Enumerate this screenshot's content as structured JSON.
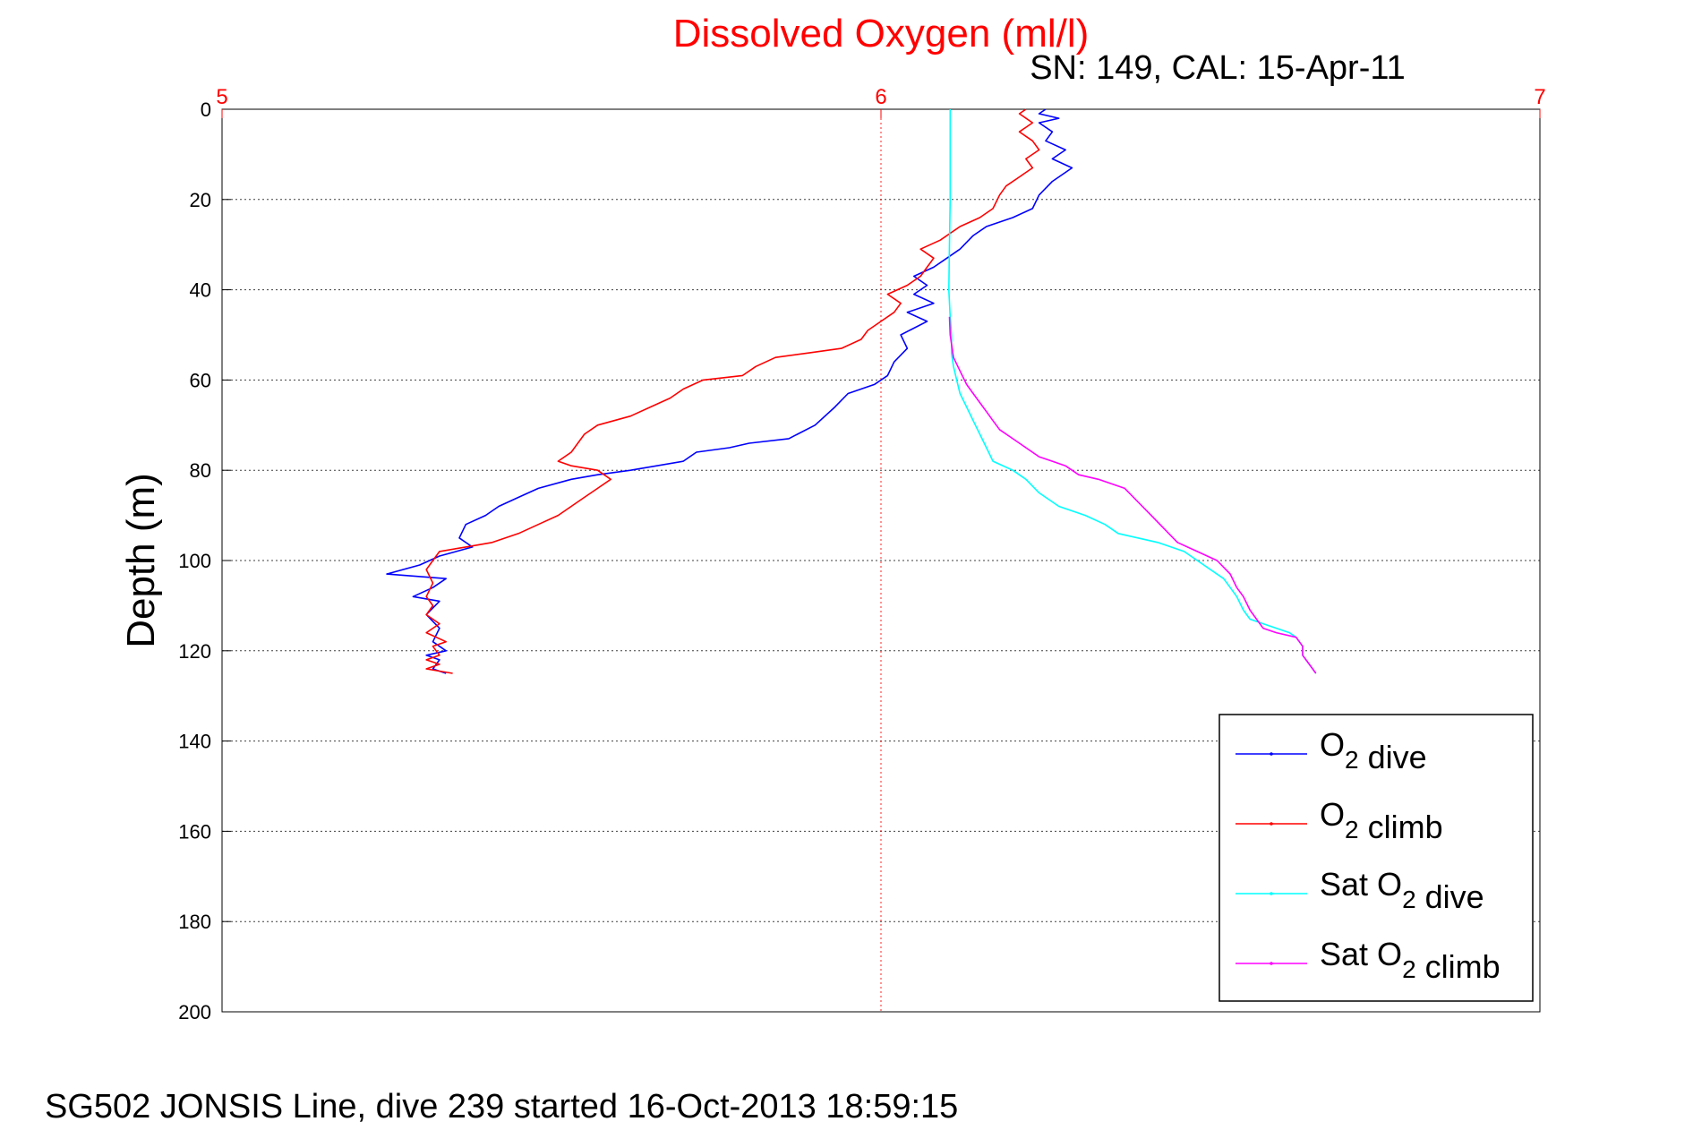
{
  "colors": {
    "title": "#ff0000",
    "top_axis": "#ff0000",
    "dive": "#0000ff",
    "climb": "#ff0000",
    "sat_dive": "#00ffff",
    "sat_climb": "#ff00ff",
    "text": "#000000",
    "grid_y": "#000000",
    "grid_x": "#ff0000"
  },
  "chart_data": {
    "type": "line",
    "title": "Dissolved Oxygen (ml/l)",
    "subtitle": "SN: 149, CAL: 15-Apr-11",
    "xlabel": "",
    "ylabel": "Depth (m)",
    "footer": "SG502 JONSIS Line, dive 239 started 16-Oct-2013 18:59:15",
    "xlim": [
      5,
      7
    ],
    "ylim": [
      0,
      200
    ],
    "y_reversed": true,
    "x_axis_position": "top",
    "grid": true,
    "legend_position": "bottom-right",
    "x_ticks": [
      "5",
      "6",
      "7"
    ],
    "y_ticks": [
      "0",
      "20",
      "40",
      "60",
      "80",
      "100",
      "120",
      "140",
      "160",
      "180",
      "200"
    ],
    "series": [
      {
        "name": "O2 dive",
        "color_key": "dive",
        "points": [
          [
            6.25,
            0
          ],
          [
            6.24,
            1
          ],
          [
            6.27,
            2
          ],
          [
            6.24,
            3
          ],
          [
            6.26,
            5
          ],
          [
            6.25,
            7
          ],
          [
            6.28,
            9
          ],
          [
            6.26,
            11
          ],
          [
            6.29,
            13
          ],
          [
            6.26,
            16
          ],
          [
            6.24,
            19
          ],
          [
            6.23,
            22
          ],
          [
            6.2,
            24
          ],
          [
            6.16,
            26
          ],
          [
            6.14,
            28
          ],
          [
            6.12,
            31
          ],
          [
            6.1,
            33
          ],
          [
            6.08,
            35
          ],
          [
            6.05,
            37
          ],
          [
            6.07,
            39
          ],
          [
            6.05,
            41
          ],
          [
            6.08,
            43
          ],
          [
            6.04,
            45
          ],
          [
            6.07,
            47
          ],
          [
            6.03,
            50
          ],
          [
            6.04,
            53
          ],
          [
            6.02,
            56
          ],
          [
            6.01,
            59
          ],
          [
            5.99,
            61
          ],
          [
            5.95,
            63
          ],
          [
            5.93,
            66
          ],
          [
            5.9,
            70
          ],
          [
            5.86,
            73
          ],
          [
            5.8,
            74
          ],
          [
            5.77,
            75
          ],
          [
            5.72,
            76
          ],
          [
            5.7,
            78
          ],
          [
            5.62,
            80
          ],
          [
            5.57,
            81
          ],
          [
            5.53,
            82
          ],
          [
            5.48,
            84
          ],
          [
            5.45,
            86
          ],
          [
            5.42,
            88
          ],
          [
            5.4,
            90
          ],
          [
            5.37,
            92
          ],
          [
            5.36,
            95
          ],
          [
            5.38,
            97
          ],
          [
            5.33,
            99
          ],
          [
            5.3,
            101
          ],
          [
            5.25,
            103
          ],
          [
            5.34,
            104
          ],
          [
            5.32,
            106
          ],
          [
            5.29,
            108
          ],
          [
            5.33,
            109
          ],
          [
            5.31,
            112
          ],
          [
            5.33,
            115
          ],
          [
            5.32,
            118
          ],
          [
            5.34,
            120
          ],
          [
            5.31,
            121
          ],
          [
            5.33,
            122
          ],
          [
            5.32,
            124
          ],
          [
            5.34,
            125
          ]
        ]
      },
      {
        "name": "O2 climb",
        "color_key": "climb",
        "points": [
          [
            5.35,
            125
          ],
          [
            5.31,
            124
          ],
          [
            5.33,
            123
          ],
          [
            5.31,
            122
          ],
          [
            5.33,
            121
          ],
          [
            5.32,
            119
          ],
          [
            5.34,
            118
          ],
          [
            5.31,
            116
          ],
          [
            5.33,
            114
          ],
          [
            5.31,
            112
          ],
          [
            5.32,
            110
          ],
          [
            5.31,
            108
          ],
          [
            5.32,
            105
          ],
          [
            5.31,
            102
          ],
          [
            5.32,
            100
          ],
          [
            5.33,
            98
          ],
          [
            5.37,
            97
          ],
          [
            5.41,
            96
          ],
          [
            5.45,
            94
          ],
          [
            5.48,
            92
          ],
          [
            5.51,
            90
          ],
          [
            5.53,
            88
          ],
          [
            5.55,
            86
          ],
          [
            5.57,
            84
          ],
          [
            5.59,
            82
          ],
          [
            5.57,
            80
          ],
          [
            5.53,
            79
          ],
          [
            5.51,
            78
          ],
          [
            5.53,
            76
          ],
          [
            5.54,
            74
          ],
          [
            5.55,
            72
          ],
          [
            5.57,
            70
          ],
          [
            5.62,
            68
          ],
          [
            5.65,
            66
          ],
          [
            5.68,
            64
          ],
          [
            5.7,
            62
          ],
          [
            5.73,
            60
          ],
          [
            5.79,
            59
          ],
          [
            5.81,
            57
          ],
          [
            5.84,
            55
          ],
          [
            5.89,
            54
          ],
          [
            5.94,
            53
          ],
          [
            5.97,
            51
          ],
          [
            5.98,
            49
          ],
          [
            6.0,
            47
          ],
          [
            6.02,
            45
          ],
          [
            6.03,
            43
          ],
          [
            6.01,
            41
          ],
          [
            6.04,
            39
          ],
          [
            6.06,
            37
          ],
          [
            6.07,
            35
          ],
          [
            6.08,
            33
          ],
          [
            6.06,
            31
          ],
          [
            6.09,
            29
          ],
          [
            6.12,
            26
          ],
          [
            6.15,
            24
          ],
          [
            6.17,
            22
          ],
          [
            6.18,
            19
          ],
          [
            6.19,
            17
          ],
          [
            6.21,
            15
          ],
          [
            6.23,
            13
          ],
          [
            6.22,
            11
          ],
          [
            6.24,
            9
          ],
          [
            6.23,
            7
          ],
          [
            6.21,
            5
          ],
          [
            6.23,
            3
          ],
          [
            6.21,
            1
          ],
          [
            6.22,
            0
          ]
        ]
      },
      {
        "name": "Sat O2 dive",
        "color_key": "sat_dive",
        "points": [
          [
            6.105,
            0
          ],
          [
            6.105,
            10
          ],
          [
            6.105,
            20
          ],
          [
            6.104,
            30
          ],
          [
            6.103,
            40
          ],
          [
            6.105,
            46
          ],
          [
            6.107,
            50
          ],
          [
            6.107,
            54
          ],
          [
            6.11,
            57
          ],
          [
            6.115,
            60
          ],
          [
            6.12,
            63
          ],
          [
            6.13,
            66
          ],
          [
            6.14,
            69
          ],
          [
            6.15,
            72
          ],
          [
            6.16,
            75
          ],
          [
            6.17,
            78
          ],
          [
            6.2,
            80
          ],
          [
            6.22,
            82
          ],
          [
            6.24,
            85
          ],
          [
            6.27,
            88
          ],
          [
            6.31,
            90
          ],
          [
            6.34,
            92
          ],
          [
            6.36,
            94
          ],
          [
            6.39,
            95
          ],
          [
            6.42,
            96
          ],
          [
            6.46,
            98
          ],
          [
            6.49,
            101
          ],
          [
            6.52,
            104
          ],
          [
            6.53,
            106
          ],
          [
            6.54,
            108
          ],
          [
            6.55,
            111
          ],
          [
            6.56,
            113
          ],
          [
            6.58,
            114
          ],
          [
            6.6,
            115
          ],
          [
            6.62,
            116
          ],
          [
            6.63,
            117
          ],
          [
            6.64,
            119
          ],
          [
            6.64,
            121
          ],
          [
            6.65,
            123
          ],
          [
            6.66,
            125
          ]
        ]
      },
      {
        "name": "Sat O2 climb",
        "color_key": "sat_climb",
        "points": [
          [
            6.66,
            125
          ],
          [
            6.65,
            123
          ],
          [
            6.64,
            121
          ],
          [
            6.64,
            119
          ],
          [
            6.63,
            117
          ],
          [
            6.6,
            116
          ],
          [
            6.58,
            115
          ],
          [
            6.57,
            113
          ],
          [
            6.56,
            111
          ],
          [
            6.55,
            108
          ],
          [
            6.54,
            106
          ],
          [
            6.53,
            103
          ],
          [
            6.51,
            100
          ],
          [
            6.48,
            98
          ],
          [
            6.45,
            96
          ],
          [
            6.43,
            93
          ],
          [
            6.41,
            90
          ],
          [
            6.39,
            87
          ],
          [
            6.37,
            84
          ],
          [
            6.33,
            82
          ],
          [
            6.3,
            81
          ],
          [
            6.28,
            79
          ],
          [
            6.26,
            78
          ],
          [
            6.24,
            77
          ],
          [
            6.22,
            75
          ],
          [
            6.2,
            73
          ],
          [
            6.18,
            71
          ],
          [
            6.17,
            69
          ],
          [
            6.16,
            67
          ],
          [
            6.15,
            65
          ],
          [
            6.14,
            63
          ],
          [
            6.13,
            61
          ],
          [
            6.12,
            58
          ],
          [
            6.11,
            55
          ],
          [
            6.105,
            50
          ],
          [
            6.104,
            46
          ]
        ]
      }
    ]
  }
}
